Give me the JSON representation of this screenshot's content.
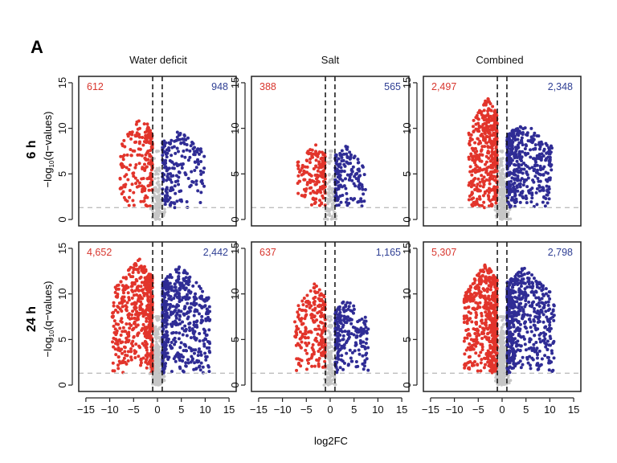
{
  "chart_data": {
    "type": "scatter",
    "panel_label": "A",
    "columns": [
      "Water deficit",
      "Salt",
      "Combined"
    ],
    "rows": [
      "6 h",
      "24 h"
    ],
    "xlabel": "log2FC",
    "xlabel_base": "log",
    "xlabel_sub": "2",
    "xlabel_suffix": "FC",
    "ylabel_prefix": "−log",
    "ylabel_sub": "10",
    "ylabel_suffix": "(q−values)",
    "xlim": [
      -16.5,
      16.5
    ],
    "ylim": [
      -0.7,
      15.7
    ],
    "xticks": [
      -15,
      -10,
      -5,
      0,
      5,
      10,
      15
    ],
    "yticks": [
      0,
      5,
      10,
      15
    ],
    "log2fc_threshold": 1,
    "q_threshold_line": 1.3,
    "colors": {
      "down": "#e2342b",
      "up": "#2f2c95",
      "ns": "#c6c6c6",
      "down_label": "#d8362e",
      "up_label": "#2f3f94"
    },
    "panels": [
      {
        "row": "6 h",
        "column": "Water deficit",
        "down": "612",
        "up": "948",
        "x_min": -8,
        "x_max": 10,
        "y_max_down": 11.4,
        "y_max_up": 9.9,
        "n": 200
      },
      {
        "row": "6 h",
        "column": "Salt",
        "down": "388",
        "up": "565",
        "x_min": -7,
        "x_max": 7.5,
        "y_max_down": 8.3,
        "y_max_up": 8.1,
        "n": 160
      },
      {
        "row": "6 h",
        "column": "Combined",
        "down": "2,497",
        "up": "2,348",
        "x_min": -7,
        "x_max": 10.5,
        "y_max_down": 13.5,
        "y_max_up": 10.8,
        "n": 420
      },
      {
        "row": "24 h",
        "column": "Water deficit",
        "down": "4,652",
        "up": "2,442",
        "x_min": -9.5,
        "x_max": 11,
        "y_max_down": 14,
        "y_max_up": 13.2,
        "n": 520
      },
      {
        "row": "24 h",
        "column": "Salt",
        "down": "637",
        "up": "1,165",
        "x_min": -7.5,
        "x_max": 8,
        "y_max_down": 11.2,
        "y_max_up": 9.5,
        "n": 220
      },
      {
        "row": "24 h",
        "column": "Combined",
        "down": "5,307",
        "up": "2,798",
        "x_min": -8,
        "x_max": 11,
        "y_max_down": 13.5,
        "y_max_up": 13.2,
        "n": 560
      }
    ]
  }
}
